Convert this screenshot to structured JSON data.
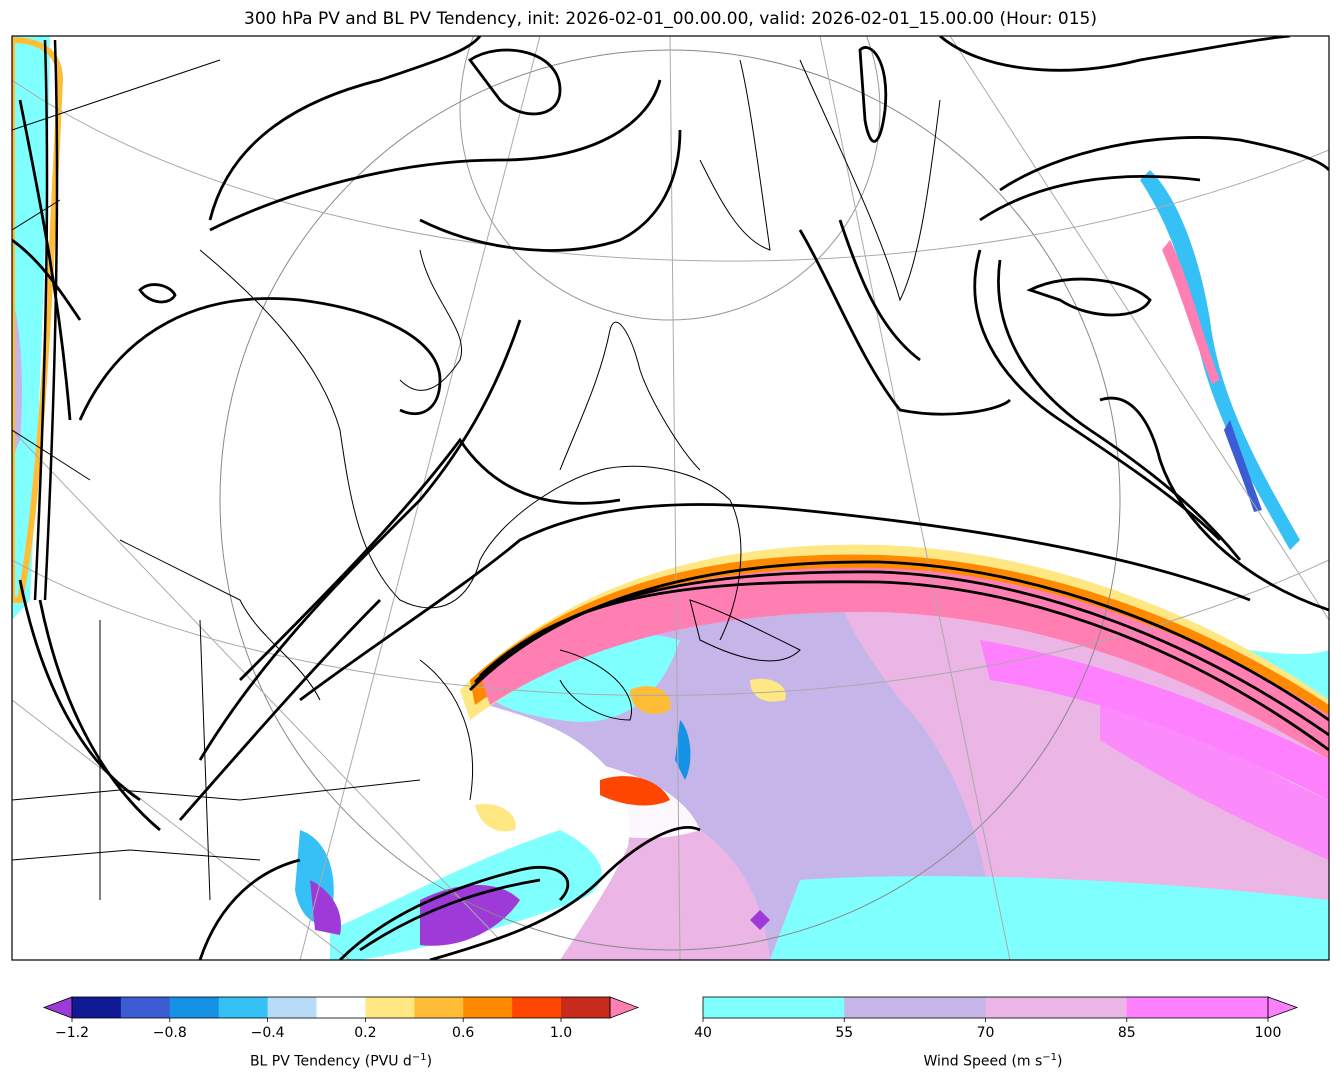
{
  "title": "300 hPa PV and BL PV Tendency, init: 2026-02-01_00.00.00, valid: 2026-02-01_15.00.00 (Hour: 015)",
  "colorbars": {
    "pv_tendency": {
      "label_main": "BL PV Tendency (PVU d",
      "label_sup": "−1",
      "label_end": ")",
      "ticks": [
        "−1.2",
        "−0.8",
        "−0.4",
        "0.2",
        "0.6",
        "1.0"
      ],
      "colors": [
        "#9d3ad8",
        "#0f1a94",
        "#3b5cd2",
        "#1592e6",
        "#35c1f5",
        "#b6dcf8",
        "#ffffff",
        "#ffe884",
        "#ffbd37",
        "#ff8a00",
        "#ff4600",
        "#c82a1c",
        "#ff7fb3"
      ]
    },
    "wind_speed": {
      "label_main": "Wind Speed (m s",
      "label_sup": "−1",
      "label_end": ")",
      "ticks": [
        "40",
        "55",
        "70",
        "85",
        "100"
      ],
      "colors": [
        "#80ffff",
        "#c6b5e9",
        "#ebb5e6",
        "#ff80ff"
      ]
    }
  }
}
